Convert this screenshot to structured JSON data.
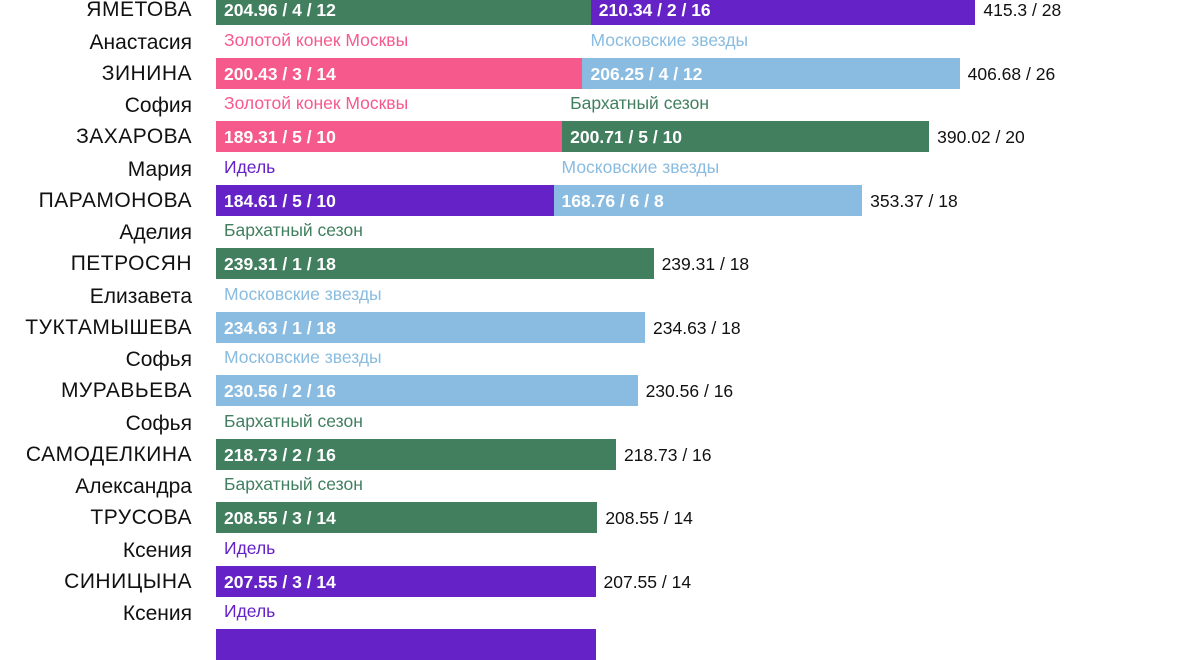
{
  "colors": {
    "Золотой конек Москвы": "#f65a8c",
    "Московские звезды": "#89bce0",
    "Бархатный сезон": "#417f5f",
    "Идель": "#6422c7"
  },
  "chart_data": {
    "type": "bar",
    "orientation": "horizontal",
    "stacked": true,
    "xlim": [
      0,
      450
    ],
    "series_names": [
      "Золотой конек Москвы",
      "Московские звезды",
      "Бархатный сезон",
      "Идель"
    ],
    "rows": [
      {
        "first": "",
        "last": "ЯМЕТОВА",
        "total": "415.3 / 28",
        "total_value": 415.3,
        "segments": [
          {
            "event": "",
            "value": 204.96,
            "label": "204.96 / 4 / 12",
            "color": "#417f5f"
          },
          {
            "event": "",
            "value": 210.34,
            "label": "210.34 / 2 / 16",
            "color": "#6422c7"
          }
        ]
      },
      {
        "first": "Анастасия",
        "last": "ЗИНИНА",
        "total": "406.68 / 26",
        "total_value": 406.68,
        "segments": [
          {
            "event": "Золотой конек Москвы",
            "value": 200.43,
            "label": "200.43 / 3 / 14",
            "color": "#f65a8c"
          },
          {
            "event": "Московские звезды",
            "value": 206.25,
            "label": "206.25 / 4 / 12",
            "color": "#89bce0"
          }
        ]
      },
      {
        "first": "София",
        "last": "ЗАХАРОВА",
        "total": "390.02 / 20",
        "total_value": 390.02,
        "segments": [
          {
            "event": "Золотой конек Москвы",
            "value": 189.31,
            "label": "189.31 / 5 / 10",
            "color": "#f65a8c"
          },
          {
            "event": "Бархатный сезон",
            "value": 200.71,
            "label": "200.71 / 5 / 10",
            "color": "#417f5f"
          }
        ]
      },
      {
        "first": "Мария",
        "last": "ПАРАМОНОВА",
        "total": "353.37 / 18",
        "total_value": 353.37,
        "segments": [
          {
            "event": "Идель",
            "value": 184.61,
            "label": "184.61 / 5 / 10",
            "color": "#6422c7"
          },
          {
            "event": "Московские звезды",
            "value": 168.76,
            "label": "168.76 / 6 / 8",
            "color": "#89bce0"
          }
        ]
      },
      {
        "first": "Аделия",
        "last": "ПЕТРОСЯН",
        "total": "239.31 / 18",
        "total_value": 239.31,
        "segments": [
          {
            "event": "Бархатный сезон",
            "value": 239.31,
            "label": "239.31 / 1 / 18",
            "color": "#417f5f"
          }
        ]
      },
      {
        "first": "Елизавета",
        "last": "ТУКТАМЫШЕВА",
        "total": "234.63 / 18",
        "total_value": 234.63,
        "segments": [
          {
            "event": "Московские звезды",
            "value": 234.63,
            "label": "234.63 / 1 / 18",
            "color": "#89bce0"
          }
        ]
      },
      {
        "first": "Софья",
        "last": "МУРАВЬЕВА",
        "total": "230.56 / 16",
        "total_value": 230.56,
        "segments": [
          {
            "event": "Московские звезды",
            "value": 230.56,
            "label": "230.56 / 2 / 16",
            "color": "#89bce0"
          }
        ]
      },
      {
        "first": "Софья",
        "last": "САМОДЕЛКИНА",
        "total": "218.73 / 16",
        "total_value": 218.73,
        "segments": [
          {
            "event": "Бархатный сезон",
            "value": 218.73,
            "label": "218.73 / 2 / 16",
            "color": "#417f5f"
          }
        ]
      },
      {
        "first": "Александра",
        "last": "ТРУСОВА",
        "total": "208.55 / 14",
        "total_value": 208.55,
        "segments": [
          {
            "event": "Бархатный сезон",
            "value": 208.55,
            "label": "208.55 / 3 / 14",
            "color": "#417f5f"
          }
        ]
      },
      {
        "first": "Ксения",
        "last": "СИНИЦЫНА",
        "total": "207.55 / 14",
        "total_value": 207.55,
        "segments": [
          {
            "event": "Идель",
            "value": 207.55,
            "label": "207.55 / 3 / 14",
            "color": "#6422c7"
          }
        ]
      },
      {
        "first": "Ксения",
        "last": "",
        "total": "",
        "total_value": 207.55,
        "segments": [
          {
            "event": "Идель",
            "value": 207.55,
            "label": "",
            "color": "#6422c7"
          }
        ]
      }
    ]
  }
}
